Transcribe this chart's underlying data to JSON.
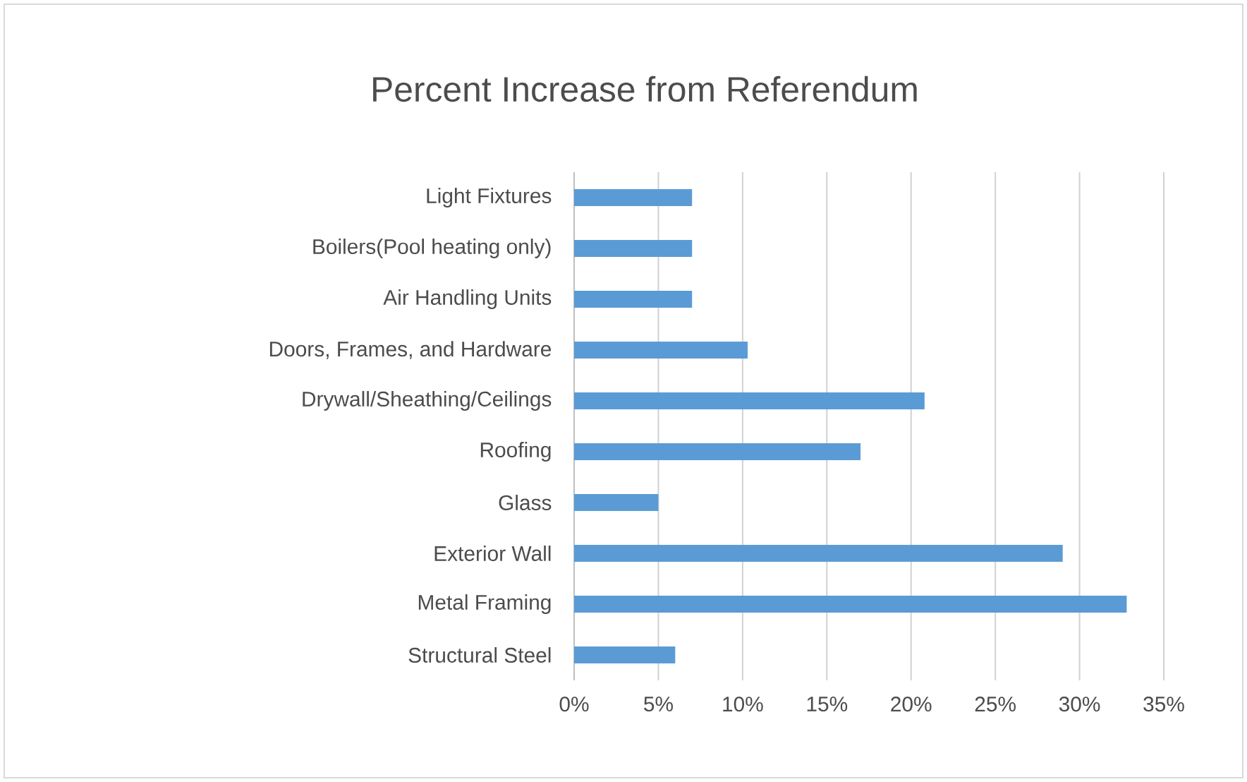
{
  "chart_data": {
    "type": "bar",
    "orientation": "horizontal",
    "title": "Percent Increase from Referendum",
    "categories": [
      "Light Fixtures",
      "Boilers(Pool heating only)",
      "Air Handling Units",
      "Doors, Frames, and Hardware",
      "Drywall/Sheathing/Ceilings",
      "Roofing",
      "Glass",
      "Exterior Wall",
      "Metal Framing",
      "Structural Steel"
    ],
    "values": [
      7,
      7,
      7,
      10.3,
      20.8,
      17,
      5,
      29,
      32.8,
      6
    ],
    "color": "#5b9bd5",
    "xlim": [
      0,
      35
    ],
    "xticks": [
      {
        "value": 0,
        "label": "0%"
      },
      {
        "value": 5,
        "label": "5%"
      },
      {
        "value": 10,
        "label": "10%"
      },
      {
        "value": 15,
        "label": "15%"
      },
      {
        "value": 20,
        "label": "20%"
      },
      {
        "value": 25,
        "label": "25%"
      },
      {
        "value": 30,
        "label": "30%"
      },
      {
        "value": 35,
        "label": "35%"
      }
    ],
    "grid": "x"
  }
}
